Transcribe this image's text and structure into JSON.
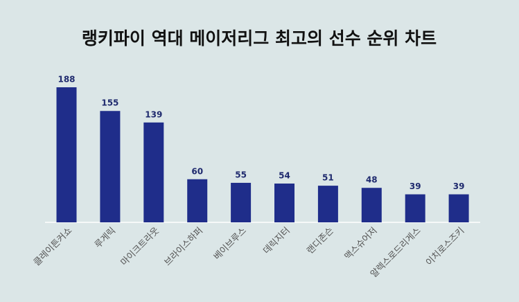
{
  "chart_data": {
    "type": "bar",
    "title": "랭키파이 역대 메이저리그 최고의 선수 순위 차트",
    "categories": [
      "클레이튼커쇼",
      "루게릭",
      "마이크트라웃",
      "브라이스하퍼",
      "베이브루스",
      "데릭지터",
      "랜디존슨",
      "맥스슈어저",
      "알렉스로드리게스",
      "이치로스즈키"
    ],
    "values": [
      188,
      155,
      139,
      60,
      55,
      54,
      51,
      48,
      39,
      39
    ],
    "color": "#1f2d8a"
  }
}
